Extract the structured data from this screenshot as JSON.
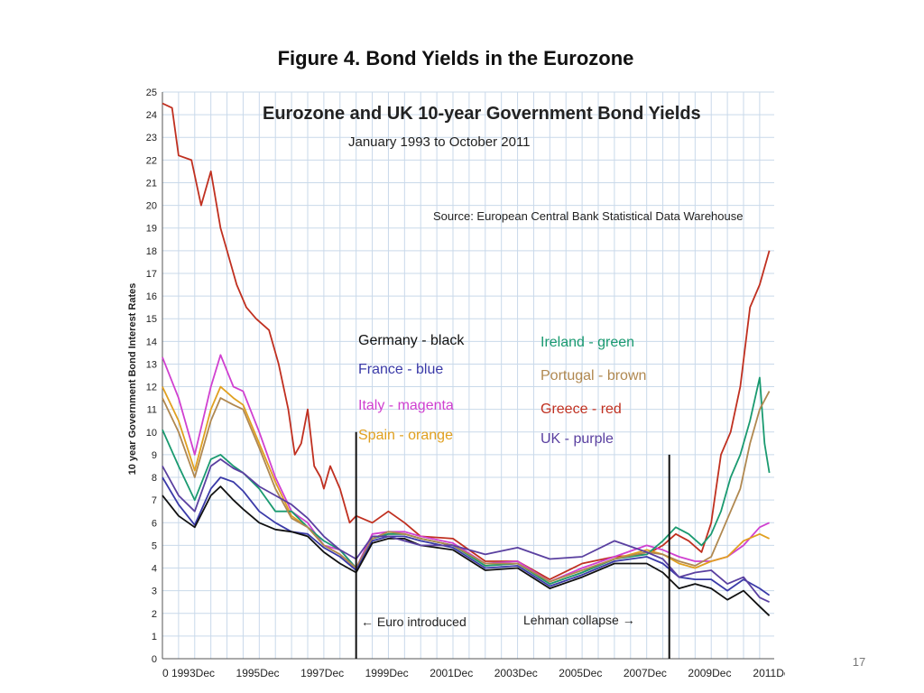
{
  "slide": {
    "title": "Figure 4. Bond Yields in the Eurozone",
    "page_number": "17"
  },
  "chart_data": {
    "type": "line",
    "title": "Eurozone and UK 10-year Government Bond Yields",
    "subtitle": "January 1993 to October 2011",
    "source": "Source:  European Central Bank Statistical Data Warehouse",
    "ylabel": "10 year Government Bond Interest Rates",
    "xlabel": "",
    "ylim": [
      0,
      25
    ],
    "xlim": [
      1993.0,
      2011.95
    ],
    "grid": true,
    "x_tick_values": [
      1993.0,
      1993.95,
      1995.95,
      1997.95,
      1999.95,
      2001.95,
      2003.95,
      2005.95,
      2007.95,
      2009.95,
      2011.95
    ],
    "x_tick_labels": [
      "0",
      "1993Dec",
      "1995Dec",
      "1997Dec",
      "1999Dec",
      "2001Dec",
      "2003Dec",
      "2005Dec",
      "2007Dec",
      "2009Dec",
      "2011Dec"
    ],
    "y_ticks": [
      0,
      1,
      2,
      3,
      4,
      5,
      6,
      7,
      8,
      9,
      10,
      11,
      12,
      13,
      14,
      15,
      16,
      17,
      18,
      19,
      20,
      21,
      22,
      23,
      24,
      25
    ],
    "legend": [
      {
        "text": "Germany - black",
        "color": "#111111"
      },
      {
        "text": "France - blue",
        "color": "#3a3aa8"
      },
      {
        "text": "Italy - magenta",
        "color": "#d040d0"
      },
      {
        "text": "Spain - orange",
        "color": "#e0a020"
      },
      {
        "text": "Ireland - green",
        "color": "#1a9a70"
      },
      {
        "text": "Portugal - brown",
        "color": "#b08850"
      },
      {
        "text": "Greece - red",
        "color": "#c03020"
      },
      {
        "text": "UK - purple",
        "color": "#5a40a0"
      }
    ],
    "annotations": [
      {
        "text": "← Euro introduced",
        "x": 1999.0
      },
      {
        "text": "Lehman collapse →",
        "x": 2008.7
      }
    ],
    "series": [
      {
        "name": "Greece",
        "color": "#c03020",
        "x": [
          1993.0,
          1993.3,
          1993.5,
          1993.9,
          1994.2,
          1994.5,
          1994.8,
          1995.0,
          1995.3,
          1995.6,
          1995.9,
          1996.3,
          1996.6,
          1996.9,
          1997.1,
          1997.3,
          1997.5,
          1997.7,
          1997.9,
          1998.0,
          1998.2,
          1998.5,
          1998.8,
          1999.0,
          1999.5,
          2000.0,
          2000.5,
          2001.0,
          2002.0,
          2003.0,
          2004.0,
          2005.0,
          2006.0,
          2007.0,
          2008.0,
          2008.5,
          2008.9,
          2009.3,
          2009.7,
          2010.0,
          2010.3,
          2010.6,
          2010.9,
          2011.2,
          2011.5,
          2011.8
        ],
        "y": [
          24.5,
          24.3,
          22.2,
          22.0,
          20.0,
          21.5,
          19.0,
          18.0,
          16.5,
          15.5,
          15.0,
          14.5,
          13.0,
          11.0,
          9.0,
          9.5,
          11.0,
          8.5,
          8.0,
          7.5,
          8.5,
          7.5,
          6.0,
          6.3,
          6.0,
          6.5,
          6.0,
          5.4,
          5.3,
          4.3,
          4.3,
          3.5,
          4.2,
          4.5,
          4.6,
          5.0,
          5.5,
          5.2,
          4.7,
          6.0,
          9.0,
          10.0,
          12.0,
          15.5,
          16.5,
          18.0
        ]
      },
      {
        "name": "Italy",
        "color": "#d040d0",
        "x": [
          1993.0,
          1993.5,
          1994.0,
          1994.5,
          1994.8,
          1995.2,
          1995.5,
          1996.0,
          1996.5,
          1997.0,
          1997.5,
          1998.0,
          1998.5,
          1999.0,
          1999.5,
          2000.0,
          2000.5,
          2001.0,
          2002.0,
          2003.0,
          2004.0,
          2005.0,
          2006.0,
          2007.0,
          2008.0,
          2008.5,
          2009.0,
          2009.5,
          2010.0,
          2010.5,
          2011.0,
          2011.5,
          2011.8
        ],
        "y": [
          13.3,
          11.5,
          9.0,
          12.0,
          13.4,
          12.0,
          11.8,
          10.0,
          8.0,
          6.5,
          6.0,
          5.0,
          4.8,
          4.0,
          5.5,
          5.6,
          5.6,
          5.4,
          5.1,
          4.2,
          4.3,
          3.4,
          4.0,
          4.5,
          5.0,
          4.8,
          4.5,
          4.3,
          4.3,
          4.5,
          5.0,
          5.8,
          6.0
        ]
      },
      {
        "name": "Spain",
        "color": "#e0a020",
        "x": [
          1993.0,
          1993.5,
          1994.0,
          1994.5,
          1994.8,
          1995.2,
          1995.5,
          1996.0,
          1996.5,
          1997.0,
          1997.5,
          1998.0,
          1998.5,
          1999.0,
          1999.5,
          2000.0,
          2000.5,
          2001.0,
          2002.0,
          2003.0,
          2004.0,
          2005.0,
          2006.0,
          2007.0,
          2008.0,
          2008.5,
          2009.0,
          2009.5,
          2010.0,
          2010.5,
          2011.0,
          2011.5,
          2011.8
        ],
        "y": [
          12.0,
          10.5,
          8.3,
          11.0,
          12.0,
          11.5,
          11.2,
          9.5,
          7.8,
          6.3,
          5.8,
          5.0,
          4.6,
          4.0,
          5.3,
          5.5,
          5.5,
          5.3,
          5.0,
          4.1,
          4.2,
          3.3,
          3.8,
          4.4,
          4.8,
          4.6,
          4.2,
          4.0,
          4.3,
          4.5,
          5.2,
          5.5,
          5.3
        ]
      },
      {
        "name": "Ireland",
        "color": "#1a9a70",
        "x": [
          1993.0,
          1993.5,
          1994.0,
          1994.5,
          1994.8,
          1995.2,
          1995.5,
          1996.0,
          1996.5,
          1997.0,
          1997.5,
          1998.0,
          1998.5,
          1999.0,
          1999.5,
          2000.0,
          2000.5,
          2001.0,
          2002.0,
          2003.0,
          2004.0,
          2005.0,
          2006.0,
          2007.0,
          2008.0,
          2008.5,
          2008.9,
          2009.3,
          2009.7,
          2010.0,
          2010.3,
          2010.6,
          2010.9,
          2011.2,
          2011.5,
          2011.65,
          2011.8
        ],
        "y": [
          10.1,
          8.5,
          7.0,
          8.8,
          9.0,
          8.5,
          8.2,
          7.5,
          6.5,
          6.5,
          5.8,
          5.2,
          4.8,
          4.0,
          5.3,
          5.5,
          5.5,
          5.3,
          5.0,
          4.1,
          4.2,
          3.3,
          3.8,
          4.4,
          4.6,
          5.2,
          5.8,
          5.5,
          5.0,
          5.5,
          6.5,
          8.0,
          9.0,
          10.5,
          12.4,
          9.5,
          8.2
        ]
      },
      {
        "name": "Portugal",
        "color": "#b08850",
        "x": [
          1993.0,
          1993.5,
          1994.0,
          1994.5,
          1994.8,
          1995.2,
          1995.5,
          1996.0,
          1996.5,
          1997.0,
          1997.5,
          1998.0,
          1998.5,
          1999.0,
          1999.5,
          2000.0,
          2000.5,
          2001.0,
          2002.0,
          2003.0,
          2004.0,
          2005.0,
          2006.0,
          2007.0,
          2008.0,
          2008.5,
          2009.0,
          2009.5,
          2010.0,
          2010.3,
          2010.6,
          2010.9,
          2011.2,
          2011.5,
          2011.8
        ],
        "y": [
          11.5,
          10.0,
          8.0,
          10.5,
          11.5,
          11.2,
          11.0,
          9.3,
          7.5,
          6.2,
          5.8,
          5.0,
          4.6,
          4.0,
          5.3,
          5.6,
          5.5,
          5.3,
          5.0,
          4.2,
          4.2,
          3.4,
          3.9,
          4.4,
          4.7,
          4.6,
          4.3,
          4.1,
          4.5,
          5.5,
          6.5,
          7.5,
          9.5,
          11.0,
          11.8
        ]
      },
      {
        "name": "France",
        "color": "#3a3aa8",
        "x": [
          1993.0,
          1993.5,
          1994.0,
          1994.5,
          1994.8,
          1995.2,
          1995.5,
          1996.0,
          1996.5,
          1997.0,
          1997.5,
          1998.0,
          1998.5,
          1999.0,
          1999.5,
          2000.0,
          2000.5,
          2001.0,
          2002.0,
          2003.0,
          2004.0,
          2005.0,
          2006.0,
          2007.0,
          2008.0,
          2008.5,
          2009.0,
          2009.5,
          2010.0,
          2010.5,
          2011.0,
          2011.5,
          2011.8
        ],
        "y": [
          8.0,
          6.8,
          5.9,
          7.5,
          8.0,
          7.8,
          7.4,
          6.5,
          6.0,
          5.6,
          5.5,
          4.9,
          4.5,
          3.9,
          5.2,
          5.4,
          5.4,
          5.2,
          4.9,
          4.0,
          4.1,
          3.2,
          3.7,
          4.3,
          4.5,
          4.2,
          3.6,
          3.5,
          3.5,
          3.0,
          3.5,
          3.1,
          2.8
        ]
      },
      {
        "name": "Germany",
        "color": "#111111",
        "x": [
          1993.0,
          1993.5,
          1994.0,
          1994.5,
          1994.8,
          1995.2,
          1995.5,
          1996.0,
          1996.5,
          1997.0,
          1997.5,
          1998.0,
          1998.5,
          1999.0,
          1999.5,
          2000.0,
          2000.5,
          2001.0,
          2002.0,
          2003.0,
          2004.0,
          2005.0,
          2006.0,
          2007.0,
          2008.0,
          2008.5,
          2009.0,
          2009.5,
          2010.0,
          2010.5,
          2011.0,
          2011.5,
          2011.8
        ],
        "y": [
          7.2,
          6.3,
          5.8,
          7.2,
          7.6,
          7.0,
          6.6,
          6.0,
          5.7,
          5.6,
          5.4,
          4.7,
          4.2,
          3.8,
          5.1,
          5.3,
          5.3,
          5.0,
          4.8,
          3.9,
          4.0,
          3.1,
          3.6,
          4.2,
          4.2,
          3.8,
          3.1,
          3.3,
          3.1,
          2.6,
          3.0,
          2.3,
          1.9
        ]
      },
      {
        "name": "UK",
        "color": "#5a40a0",
        "x": [
          1993.0,
          1993.5,
          1994.0,
          1994.5,
          1994.8,
          1995.2,
          1995.5,
          1996.0,
          1996.5,
          1997.0,
          1997.5,
          1998.0,
          1998.5,
          1999.0,
          1999.5,
          2000.0,
          2000.5,
          2001.0,
          2002.0,
          2003.0,
          2004.0,
          2005.0,
          2006.0,
          2007.0,
          2008.0,
          2008.5,
          2009.0,
          2009.5,
          2010.0,
          2010.5,
          2011.0,
          2011.5,
          2011.8
        ],
        "y": [
          8.5,
          7.2,
          6.5,
          8.5,
          8.8,
          8.4,
          8.2,
          7.6,
          7.2,
          6.8,
          6.2,
          5.4,
          4.8,
          4.4,
          5.4,
          5.4,
          5.2,
          5.0,
          5.0,
          4.6,
          4.9,
          4.4,
          4.5,
          5.2,
          4.7,
          4.4,
          3.6,
          3.8,
          3.9,
          3.3,
          3.6,
          2.7,
          2.5
        ]
      }
    ]
  }
}
